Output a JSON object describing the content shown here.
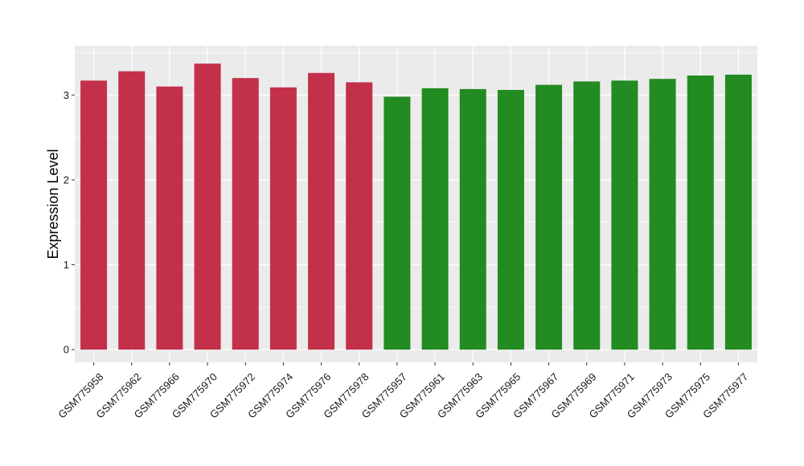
{
  "chart_data": {
    "type": "bar",
    "title": "",
    "xlabel": "",
    "ylabel": "Expression Level",
    "ylim": [
      -0.15,
      3.58
    ],
    "yticks": [
      0,
      1,
      2,
      3
    ],
    "ytick_labels": [
      "0",
      "1",
      "2",
      "3"
    ],
    "grid": true,
    "background": "#EBEBEB",
    "categories": [
      "GSM775958",
      "GSM775962",
      "GSM775966",
      "GSM775970",
      "GSM775972",
      "GSM775974",
      "GSM775976",
      "GSM775978",
      "GSM775957",
      "GSM775961",
      "GSM775963",
      "GSM775965",
      "GSM775967",
      "GSM775969",
      "GSM775971",
      "GSM775973",
      "GSM775975",
      "GSM775977"
    ],
    "values": [
      3.17,
      3.28,
      3.1,
      3.37,
      3.2,
      3.09,
      3.26,
      3.15,
      2.98,
      3.08,
      3.07,
      3.06,
      3.12,
      3.16,
      3.17,
      3.19,
      3.23,
      3.24
    ],
    "colors": [
      "#C3304A",
      "#C3304A",
      "#C3304A",
      "#C3304A",
      "#C3304A",
      "#C3304A",
      "#C3304A",
      "#C3304A",
      "#228B22",
      "#228B22",
      "#228B22",
      "#228B22",
      "#228B22",
      "#228B22",
      "#228B22",
      "#228B22",
      "#228B22",
      "#228B22"
    ]
  }
}
